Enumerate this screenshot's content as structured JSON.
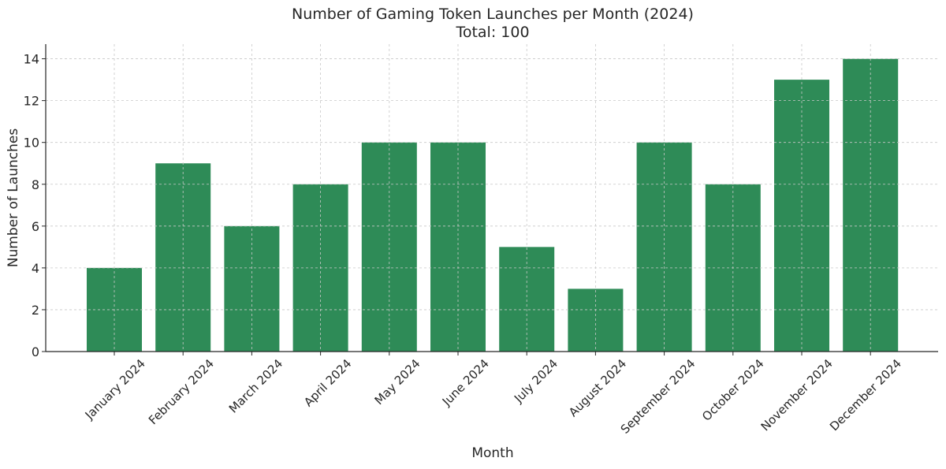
{
  "chart_data": {
    "type": "bar",
    "title": "Number of Gaming Token Launches per Month (2024)",
    "subtitle": "Total: 100",
    "xlabel": "Month",
    "ylabel": "Number of Launches",
    "categories": [
      "January 2024",
      "February 2024",
      "March 2024",
      "April 2024",
      "May 2024",
      "June 2024",
      "July 2024",
      "August 2024",
      "September 2024",
      "October 2024",
      "November 2024",
      "December 2024"
    ],
    "values": [
      4,
      9,
      6,
      8,
      10,
      10,
      5,
      3,
      10,
      8,
      13,
      14
    ],
    "ylim": [
      0,
      14.7
    ],
    "yticks": [
      0,
      2,
      4,
      6,
      8,
      10,
      12,
      14
    ],
    "grid": true,
    "bar_color": "#2e8b57",
    "grid_color": "#c8c8c8"
  }
}
